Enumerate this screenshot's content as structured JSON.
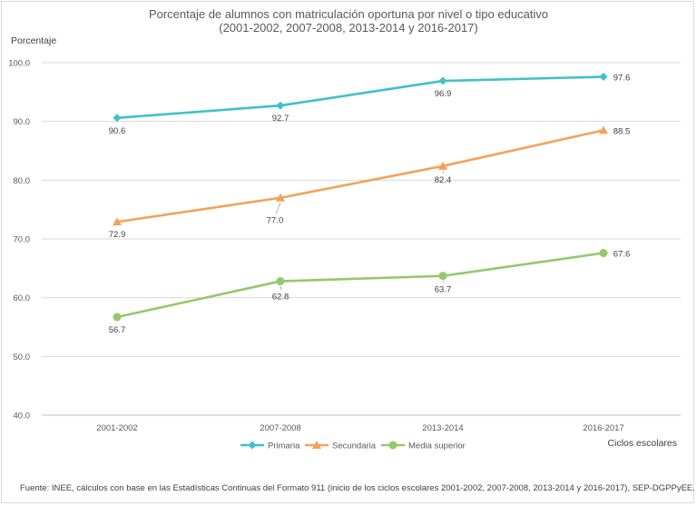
{
  "chart_data": {
    "type": "line",
    "title": "Porcentaje de alumnos con matriculación oportuna por nivel o tipo educativo",
    "subtitle": "(2001-2002, 2007-2008, 2013-2014 y 2016-2017)",
    "ylabel": "Porcentaje",
    "xlabel": "Ciclos escolares",
    "ylim": [
      40,
      100
    ],
    "y_ticks": [
      "100.0",
      "90.0",
      "80.0",
      "70.0",
      "60.0",
      "50.0",
      "40.0"
    ],
    "y_tick_values": [
      100,
      90,
      80,
      70,
      60,
      50,
      40
    ],
    "categories": [
      "2001-2002",
      "2007-2008",
      "2013-2014",
      "2016-2017"
    ],
    "grid": true,
    "legend_position": "bottom",
    "series": [
      {
        "name": "Primaria",
        "values": [
          90.6,
          92.7,
          96.9,
          97.6
        ],
        "labels": [
          "90.6",
          "92.7",
          "96.9",
          "97.6"
        ],
        "color": "#3fc1c9",
        "marker": "diamond"
      },
      {
        "name": "Secundaria",
        "values": [
          72.9,
          77.0,
          82.4,
          88.5
        ],
        "labels": [
          "72.9",
          "77.0",
          "82.4",
          "88.5"
        ],
        "color": "#f4a259",
        "marker": "triangle"
      },
      {
        "name": "Media superior",
        "values": [
          56.7,
          62.8,
          63.7,
          67.6
        ],
        "labels": [
          "56.7",
          "62.8",
          "63.7",
          "67.6"
        ],
        "color": "#93c96b",
        "marker": "circle"
      }
    ]
  },
  "source": "Fuente: INEE, cálculos con base en las Estadísticas Continuas del Formato 911 (inicio de los ciclos escolares 2001-2002, 2007-2008, 2013-2014 y 2016-2017), SEP-DGPPyEE."
}
